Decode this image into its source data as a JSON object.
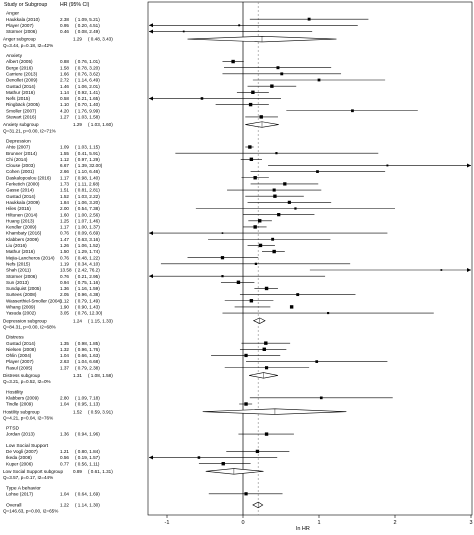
{
  "chart_data": {
    "type": "forest",
    "header": {
      "study": "Study or Subgroup",
      "hr": "HR (95% CI)"
    },
    "xlabel": "ln HR",
    "xlim": [
      -1.3,
      3.0
    ],
    "xticks": [
      -1,
      0,
      1,
      2,
      3
    ],
    "reference_line": 0,
    "overall_line": 0.2,
    "groups": [
      {
        "name": "Anger",
        "studies": [
          {
            "study": "Haukkala (2010)",
            "hr": "2.38",
            "ci": "( 1.09, 5.21)",
            "lnhr": 0.87,
            "lo": 0.09,
            "hi": 1.65
          },
          {
            "study": "Player (2007)",
            "hr": "0.95",
            "ci": "( 0.20, 4.51)",
            "lnhr": -0.05,
            "lo": -1.61,
            "hi": 1.51
          },
          {
            "study": "Stürmer (2006)",
            "hr": "0.46",
            "ci": "( 0.08, 2.49)",
            "lnhr": -0.78,
            "lo": -2.53,
            "hi": 0.91
          }
        ],
        "subgroup": {
          "label": "Anger subgroup",
          "hr": "1.29",
          "ci": "( 0.48, 3.43)",
          "lnhr": 0.25,
          "lo": -0.73,
          "hi": 1.23
        },
        "heterogeneity": "Q=3.44, p=0.18, I2=42%"
      },
      {
        "name": "Anxiety",
        "studies": [
          {
            "study": "Albert (2005)",
            "hr": "0.88",
            "ci": "( 0.76, 1.01)",
            "lnhr": -0.13,
            "lo": -0.27,
            "hi": 0.01
          },
          {
            "study": "Berge (2016)",
            "hr": "1.58",
            "ci": "( 0.78, 3.20)",
            "lnhr": 0.46,
            "lo": -0.25,
            "hi": 1.16
          },
          {
            "study": "Carriere (2013)",
            "hr": "1.66",
            "ci": "( 0.76, 3.62)",
            "lnhr": 0.51,
            "lo": -0.27,
            "hi": 1.29
          },
          {
            "study": "Denollet (2009)",
            "hr": "2.72",
            "ci": "( 1.14, 6.49)",
            "lnhr": 1.0,
            "lo": 0.13,
            "hi": 1.87
          },
          {
            "study": "Gustad (2014)",
            "hr": "1.46",
            "ci": "( 1.06, 2.01)",
            "lnhr": 0.38,
            "lo": 0.06,
            "hi": 0.7
          },
          {
            "study": "Mathur (2016)",
            "hr": "1.14",
            "ci": "( 0.92, 1.41)",
            "lnhr": 0.13,
            "lo": -0.08,
            "hi": 0.34
          },
          {
            "study": "Nefs (2015)",
            "hr": "0.58",
            "ci": "( 0.21, 1.65)",
            "lnhr": -0.54,
            "lo": -1.56,
            "hi": 0.5
          },
          {
            "study": "Ringbäck (2005)",
            "hr": "1.10",
            "ci": "( 0.70, 1.40)",
            "lnhr": 0.1,
            "lo": -0.36,
            "hi": 0.34
          },
          {
            "study": "Smoller (2007)",
            "hr": "4.20",
            "ci": "( 1.76, 9.99)",
            "lnhr": 1.44,
            "lo": 0.57,
            "hi": 2.3
          },
          {
            "study": "Stewart (2016)",
            "hr": "1.27",
            "ci": "( 1.03, 1.58)",
            "lnhr": 0.24,
            "lo": 0.03,
            "hi": 0.46
          }
        ],
        "subgroup": {
          "label": "Anxiety subgroup",
          "hr": "1.29",
          "ci": "( 1.03, 1.60)",
          "lnhr": 0.25,
          "lo": 0.03,
          "hi": 0.47
        },
        "heterogeneity": "Q=31.21, p=0.00, I2=71%"
      },
      {
        "name": "Depression",
        "studies": [
          {
            "study": "Ahto (2007)",
            "hr": "1.09",
            "ci": "( 1.03, 1.15)",
            "lnhr": 0.09,
            "lo": 0.03,
            "hi": 0.14
          },
          {
            "study": "Brunner (2014)",
            "hr": "1.55",
            "ci": "( 0.41, 5.91)",
            "lnhr": 0.44,
            "lo": -0.89,
            "hi": 1.78
          },
          {
            "study": "Chi (2014)",
            "hr": "1.12",
            "ci": "( 0.97, 1.29)",
            "lnhr": 0.11,
            "lo": -0.03,
            "hi": 0.25
          },
          {
            "study": "Clouse (2003)",
            "hr": "6.67",
            "ci": "( 1.39, 32.00)",
            "lnhr": 1.9,
            "lo": 0.33,
            "hi": 3.47
          },
          {
            "study": "Cohen (2001)",
            "hr": "2.66",
            "ci": "( 1.10, 6.46)",
            "lnhr": 0.98,
            "lo": 0.1,
            "hi": 1.87
          },
          {
            "study": "Daskalopoulou (2016)",
            "hr": "1.17",
            "ci": "( 0.98, 1.40)",
            "lnhr": 0.16,
            "lo": -0.02,
            "hi": 0.34
          },
          {
            "study": "Ferketich (2000)",
            "hr": "1.73",
            "ci": "( 1.11, 2.68)",
            "lnhr": 0.55,
            "lo": 0.1,
            "hi": 0.99
          },
          {
            "study": "Gasse (2014)",
            "hr": "1.51",
            "ci": "( 0.81, 2.81)",
            "lnhr": 0.41,
            "lo": -0.21,
            "hi": 1.03
          },
          {
            "study": "Gustad (2014)",
            "hr": "1.52",
            "ci": "( 1.03, 2.22)",
            "lnhr": 0.42,
            "lo": 0.03,
            "hi": 0.8
          },
          {
            "study": "Haukkala (2009)",
            "hr": "1.84",
            "ci": "( 1.06, 3.20)",
            "lnhr": 0.61,
            "lo": 0.06,
            "hi": 1.16
          },
          {
            "study": "Hiles (2015)",
            "hr": "2.00",
            "ci": "( 0.54, 7.38)",
            "lnhr": 0.69,
            "lo": -0.62,
            "hi": 2.0
          },
          {
            "study": "Hiltunen (2014)",
            "hr": "1.60",
            "ci": "( 1.00, 2.56)",
            "lnhr": 0.47,
            "lo": 0.0,
            "hi": 0.94
          },
          {
            "study": "Huang (2013)",
            "hr": "1.25",
            "ci": "( 1.07, 1.46)",
            "lnhr": 0.22,
            "lo": 0.07,
            "hi": 0.38
          },
          {
            "study": "Kendler (2009)",
            "hr": "1.17",
            "ci": "( 1.00, 1.37)",
            "lnhr": 0.16,
            "lo": 0.0,
            "hi": 0.31
          },
          {
            "study": "Khambaty (2016)",
            "hr": "0.76",
            "ci": "( 0.09, 6.69)",
            "lnhr": -0.27,
            "lo": -2.41,
            "hi": 1.9
          },
          {
            "study": "Klabbers (2009)",
            "hr": "1.47",
            "ci": "( 0.63, 3.16)",
            "lnhr": 0.39,
            "lo": -0.46,
            "hi": 1.15
          },
          {
            "study": "Liu (2016)",
            "hr": "1.26",
            "ci": "( 1.06, 1.52)",
            "lnhr": 0.23,
            "lo": 0.06,
            "hi": 0.42
          },
          {
            "study": "Mathur (2016)",
            "hr": "1.50",
            "ci": "( 1.29, 1.74)",
            "lnhr": 0.41,
            "lo": 0.25,
            "hi": 0.55
          },
          {
            "study": "Mejia-Lancheros (2014)",
            "hr": "0.76",
            "ci": "( 0.48, 1.22)",
            "lnhr": -0.27,
            "lo": -0.73,
            "hi": 0.2
          },
          {
            "study": "Nefs (2015)",
            "hr": "1.19",
            "ci": "( 0.34, 4.10)",
            "lnhr": 0.17,
            "lo": -1.08,
            "hi": 1.41
          },
          {
            "study": "Shah (2011)",
            "hr": "13.58",
            "ci": "( 2.42, 76.2)",
            "lnhr": 2.61,
            "lo": 0.88,
            "hi": 4.33
          },
          {
            "study": "Stürmer (2006)",
            "hr": "0.76",
            "ci": "( 0.21, 2.95)",
            "lnhr": -0.27,
            "lo": -1.56,
            "hi": 1.08
          },
          {
            "study": "Sun (2013)",
            "hr": "0.94",
            "ci": "( 0.75, 1.16)",
            "lnhr": -0.06,
            "lo": -0.29,
            "hi": 0.15
          },
          {
            "study": "Sundquist (2005)",
            "hr": "1.36",
            "ci": "( 1.16, 1.59)",
            "lnhr": 0.31,
            "lo": 0.15,
            "hi": 0.46
          },
          {
            "study": "Surtees (2008)",
            "hr": "2.05",
            "ci": "( 0.96, 4.38)",
            "lnhr": 0.72,
            "lo": -0.04,
            "hi": 1.48
          },
          {
            "study": "Wasserthiel-Smoller (2004)",
            "hr": "1.12",
            "ci": "( 0.79, 1.49)",
            "lnhr": 0.11,
            "lo": -0.24,
            "hi": 0.4
          },
          {
            "study": "Whang (2009)",
            "hr": "1.90",
            "ci": "( 0.90, 1.43)",
            "lnhr": 0.64,
            "lo": -0.11,
            "hi": 0.36
          },
          {
            "study": "Yasuda (2002)",
            "hr": "3.05",
            "ci": "( 0.76, 12.30)",
            "lnhr": 1.12,
            "lo": -0.27,
            "hi": 2.51
          }
        ],
        "subgroup": {
          "label": "Depression subgroup",
          "hr": "1.24",
          "ci": "( 1.15, 1.33)",
          "lnhr": 0.22,
          "lo": 0.14,
          "hi": 0.29
        },
        "heterogeneity": "Q=84.31, p=0.00, I2=68%"
      },
      {
        "name": "Distress",
        "studies": [
          {
            "study": "Gustad (2014)",
            "hr": "1.35",
            "ci": "( 0.98, 1.85)",
            "lnhr": 0.3,
            "lo": -0.02,
            "hi": 0.62
          },
          {
            "study": "Nielsen (2008)",
            "hr": "1.32",
            "ci": "( 0.96, 1.76)",
            "lnhr": 0.28,
            "lo": -0.04,
            "hi": 0.57
          },
          {
            "study": "Ohlin (2004)",
            "hr": "1.04",
            "ci": "( 0.66, 1.63)",
            "lnhr": 0.04,
            "lo": -0.42,
            "hi": 0.49
          },
          {
            "study": "Player (2007)",
            "hr": "2.63",
            "ci": "( 1.04, 6.68)",
            "lnhr": 0.97,
            "lo": 0.04,
            "hi": 1.9
          },
          {
            "study": "Rasul (2005)",
            "hr": "1.37",
            "ci": "( 0.79, 2.38)",
            "lnhr": 0.31,
            "lo": -0.24,
            "hi": 0.87
          }
        ],
        "subgroup": {
          "label": "Distress subgroup",
          "hr": "1.31",
          "ci": "( 1.08, 1.58)",
          "lnhr": 0.27,
          "lo": 0.08,
          "hi": 0.46
        },
        "heterogeneity": "Q=3.21, p=0.52, I2=0%"
      },
      {
        "name": "Hostility",
        "studies": [
          {
            "study": "Klabbers (2009)",
            "hr": "2.80",
            "ci": "( 1.09, 7.18)",
            "lnhr": 1.03,
            "lo": 0.09,
            "hi": 1.97
          },
          {
            "study": "Tindle (2009)",
            "hr": "1.04",
            "ci": "( 0.95, 1.13)",
            "lnhr": 0.04,
            "lo": -0.05,
            "hi": 0.12
          }
        ],
        "subgroup": {
          "label": "Hostility subgroup",
          "hr": "1.52",
          "ci": "( 0.59, 3.91)",
          "lnhr": 0.42,
          "lo": -0.53,
          "hi": 1.36
        },
        "heterogeneity": "Q=4.21, p=0.04, I2=76%"
      },
      {
        "name": "PTSD",
        "studies": [
          {
            "study": "Jordan (2013)",
            "hr": "1.36",
            "ci": "( 0.94, 1.96)",
            "lnhr": 0.31,
            "lo": -0.06,
            "hi": 0.67
          }
        ]
      },
      {
        "name": "Low Social Support",
        "studies": [
          {
            "study": "De Vogli (2007)",
            "hr": "1.21",
            "ci": "( 0.80, 1.84)",
            "lnhr": 0.19,
            "lo": -0.22,
            "hi": 0.61
          },
          {
            "study": "Ikeda (2008)",
            "hr": "0.56",
            "ci": "( 0.19, 1.57)",
            "lnhr": -0.58,
            "lo": -1.66,
            "hi": 0.45
          },
          {
            "study": "Kuper (2006)",
            "hr": "0.77",
            "ci": "( 0.56, 1.11)",
            "lnhr": -0.26,
            "lo": -0.58,
            "hi": 0.1
          }
        ],
        "subgroup": {
          "label": "Low Social Support subgroup",
          "hr": "0.89",
          "ci": "( 0.61, 1.31)",
          "lnhr": -0.12,
          "lo": -0.49,
          "hi": 0.27
        },
        "heterogeneity": "Q=3.57, p=0.17, I2=44%"
      },
      {
        "name": "Type A behavior",
        "studies": [
          {
            "study": "Lohse (2017)",
            "hr": "1.04",
            "ci": "( 0.64, 1.69)",
            "lnhr": 0.04,
            "lo": -0.45,
            "hi": 0.52
          }
        ]
      }
    ],
    "overall": {
      "label": "Overall",
      "hr": "1.22",
      "ci": "( 1.14, 1.30)",
      "lnhr": 0.2,
      "lo": 0.13,
      "hi": 0.26
    },
    "overall_heterogeneity": "Q=146.63, p=0.00, I2=65%"
  }
}
